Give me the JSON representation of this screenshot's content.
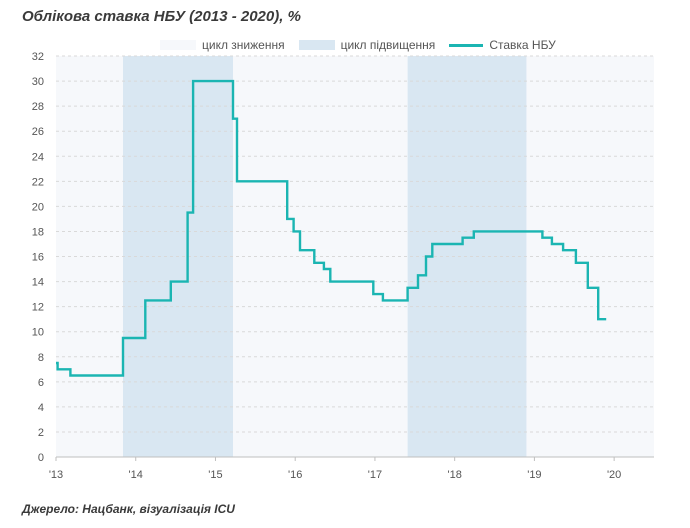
{
  "title": "Облікова ставка НБУ (2013 - 2020), %",
  "source": "Джерело: Нацбанк, візуалізація ICU",
  "legend": {
    "easing": "цикл зниження",
    "tightening": "цикл підвищення",
    "rate": "Ставка НБУ"
  },
  "colors": {
    "easing": "#f6f8fb",
    "tightening": "#d9e7f2",
    "rate": "#1bb5b2",
    "grid": "#d9d9d9",
    "axis": "#bfbfbf"
  },
  "chart_data": {
    "type": "line",
    "title": "Облікова ставка НБУ (2013 - 2020), %",
    "xlabel": "",
    "ylabel": "",
    "xlim": [
      2013,
      2020.5
    ],
    "ylim": [
      0,
      32
    ],
    "yticks": [
      0,
      2,
      4,
      6,
      8,
      10,
      12,
      14,
      16,
      18,
      20,
      22,
      24,
      26,
      28,
      30,
      32
    ],
    "xticks": [
      {
        "value": 2013,
        "label": "'13"
      },
      {
        "value": 2014,
        "label": "'14"
      },
      {
        "value": 2015,
        "label": "'15"
      },
      {
        "value": 2016,
        "label": "'16"
      },
      {
        "value": 2017,
        "label": "'17"
      },
      {
        "value": 2018,
        "label": "'18"
      },
      {
        "value": 2019,
        "label": "'19"
      },
      {
        "value": 2020,
        "label": "'20"
      }
    ],
    "grid": "horizontal dashed",
    "legend_position": "top",
    "bands": [
      {
        "name": "цикл підвищення",
        "start": 2013.84,
        "end": 2015.22
      },
      {
        "name": "цикл підвищення",
        "start": 2017.41,
        "end": 2018.9
      }
    ],
    "series": [
      {
        "name": "Ставка НБУ",
        "step": "after",
        "x": [
          2013.0,
          2013.02,
          2013.18,
          2013.84,
          2014.12,
          2014.44,
          2014.65,
          2014.72,
          2015.22,
          2015.27,
          2015.9,
          2015.98,
          2016.06,
          2016.24,
          2016.36,
          2016.44,
          2016.98,
          2017.1,
          2017.41,
          2017.54,
          2017.64,
          2017.72,
          2018.0,
          2018.1,
          2018.24,
          2018.9,
          2019.1,
          2019.22,
          2019.36,
          2019.52,
          2019.67,
          2019.8
        ],
        "values": [
          7.5,
          7.0,
          6.5,
          9.5,
          12.5,
          14.0,
          19.5,
          30.0,
          27.0,
          22.0,
          19.0,
          18.0,
          16.5,
          15.5,
          15.0,
          14.0,
          13.0,
          12.5,
          13.5,
          14.5,
          16.0,
          17.0,
          17.0,
          17.5,
          18.0,
          18.0,
          17.5,
          17.0,
          16.5,
          15.5,
          13.5,
          11.0
        ]
      }
    ]
  }
}
